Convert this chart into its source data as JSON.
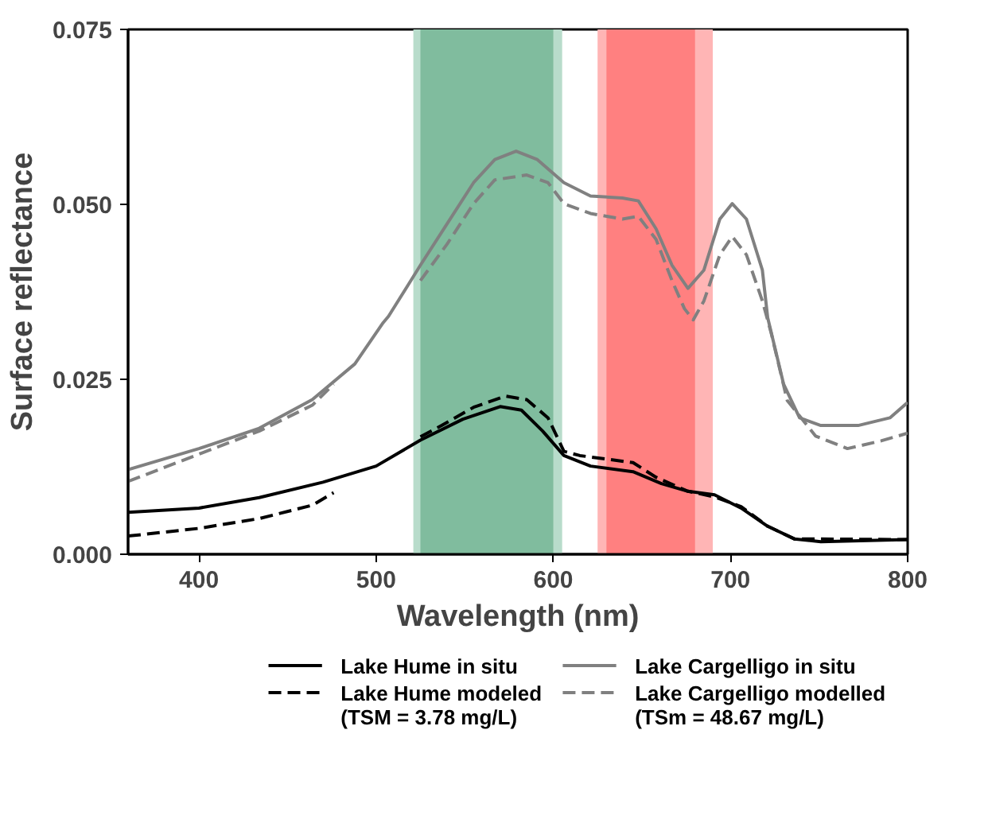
{
  "chart_data": {
    "type": "line",
    "xlabel": "Wavelength (nm)",
    "ylabel": "Surface reflectance",
    "xlim": [
      360,
      800
    ],
    "xticks": [
      400,
      500,
      600,
      700,
      800
    ],
    "ylim": [
      0,
      0.075
    ],
    "yticks": [
      {
        "value": 0,
        "label": "0.000"
      },
      {
        "value": 0.025,
        "label": "0.025"
      },
      {
        "value": 0.05,
        "label": "0.050"
      },
      {
        "value": 0.075,
        "label": "0.075"
      }
    ],
    "grid": false,
    "legend": "bottom",
    "bands": [
      {
        "axis": "x",
        "from": 521,
        "to": 605,
        "label": null,
        "color": "#b8dccb"
      },
      {
        "axis": "x",
        "from": 525,
        "to": 600,
        "label": null,
        "color": "#80bc9e"
      },
      {
        "axis": "x",
        "from": 625,
        "to": 690,
        "label": null,
        "color": "#ffb5b5"
      },
      {
        "axis": "x",
        "from": 630,
        "to": 680,
        "label": null,
        "color": "#ff8080"
      }
    ],
    "series": [
      {
        "name": "Lake Hume in situ",
        "color": "#000000",
        "line_style": "solid",
        "x": [
          360,
          400,
          434,
          470,
          500,
          525,
          549,
          570,
          582,
          594,
          606,
          621,
          645,
          661,
          676,
          691,
          706,
          721,
          736,
          751,
          800
        ],
        "values": [
          0.006,
          0.0066,
          0.0081,
          0.0103,
          0.0126,
          0.0163,
          0.0193,
          0.0211,
          0.0206,
          0.0176,
          0.0141,
          0.0126,
          0.0118,
          0.0101,
          0.009,
          0.0085,
          0.0066,
          0.004,
          0.0022,
          0.0018,
          0.0021
        ]
      },
      {
        "name": "Lake Hume modeled\n(TSM = 3.78 mg/L)",
        "color": "#000000",
        "line_style": "dashed",
        "x": [
          360,
          400,
          434,
          464,
          476,
          500,
          525,
          537,
          555,
          573,
          585,
          597,
          606,
          615,
          645,
          658,
          676,
          691,
          706,
          721,
          736,
          800
        ],
        "values": [
          0.0026,
          0.0037,
          0.0051,
          0.007,
          0.0088,
          null,
          0.0168,
          0.0184,
          0.021,
          0.0226,
          0.0221,
          0.0195,
          0.0147,
          0.0141,
          0.0131,
          0.011,
          0.009,
          0.0082,
          0.0068,
          0.004,
          0.0022,
          0.0021
        ]
      },
      {
        "name": "Lake Cargelligo in situ",
        "color": "#808080",
        "line_style": "solid",
        "x": [
          360,
          400,
          434,
          464,
          488,
          504,
          507,
          525,
          540,
          555,
          567,
          579,
          591,
          606,
          621,
          639,
          648,
          658,
          667,
          676,
          685,
          694,
          701,
          709,
          718,
          721,
          730,
          739,
          751,
          772,
          790,
          800
        ],
        "values": [
          0.0121,
          0.0151,
          0.018,
          0.0221,
          0.0272,
          0.0331,
          0.034,
          0.0413,
          0.0472,
          0.0531,
          0.0564,
          0.0576,
          0.0564,
          0.0531,
          0.0512,
          0.0509,
          0.0505,
          0.0465,
          0.0413,
          0.038,
          0.0406,
          0.0479,
          0.0501,
          0.0479,
          0.0406,
          0.0338,
          0.0243,
          0.0195,
          0.0184,
          0.0184,
          0.0195,
          0.0217
        ]
      },
      {
        "name": "Lake Cargelligo modelled\n(TSm = 48.67 mg/L)",
        "color": "#808080",
        "line_style": "dashed",
        "x": [
          360,
          400,
          434,
          464,
          476,
          500,
          525,
          540,
          555,
          567,
          585,
          597,
          606,
          621,
          639,
          648,
          658,
          667,
          674,
          679,
          685,
          694,
          701,
          709,
          718,
          723,
          732,
          748,
          766,
          785,
          800
        ],
        "values": [
          0.0104,
          0.0143,
          0.0176,
          0.0213,
          0.0243,
          null,
          0.0391,
          0.0443,
          0.0501,
          0.0535,
          0.0542,
          0.0531,
          0.0501,
          0.0487,
          0.0479,
          0.0483,
          0.045,
          0.0391,
          0.0351,
          0.0335,
          0.0362,
          0.0428,
          0.0454,
          0.0428,
          0.0362,
          0.0316,
          0.022,
          0.0169,
          0.0151,
          0.0162,
          0.0173
        ]
      }
    ]
  }
}
